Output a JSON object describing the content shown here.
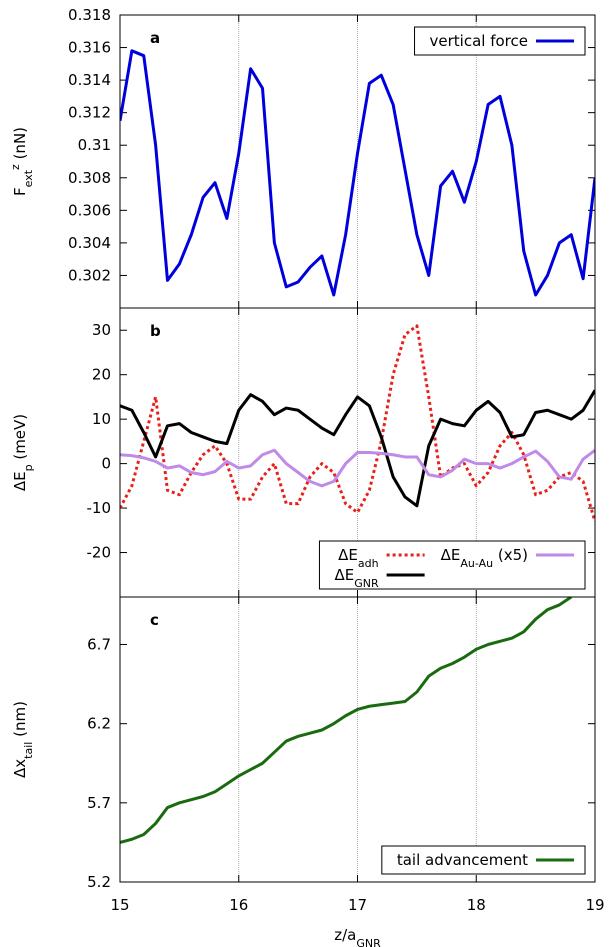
{
  "chart_data": [
    {
      "type": "line",
      "label": "a",
      "xlim": [
        15,
        19
      ],
      "xticks": [
        15,
        16,
        17,
        18,
        19
      ],
      "grid": true,
      "ylim": [
        0.3,
        0.318
      ],
      "yticks": [
        0.302,
        0.304,
        0.306,
        0.308,
        0.31,
        0.312,
        0.314,
        0.316,
        0.318
      ],
      "ylabel": [
        {
          "text": "F"
        },
        {
          "text": "ext",
          "shift": "sub"
        },
        {
          "text": "z",
          "shift": "super"
        },
        {
          "text": " (nN)"
        }
      ],
      "legend": "upper right",
      "x": [
        15,
        15.1,
        15.2,
        15.3,
        15.4,
        15.5,
        15.6,
        15.7,
        15.8,
        15.9,
        16,
        16.1,
        16.2,
        16.3,
        16.4,
        16.5,
        16.6,
        16.7,
        16.8,
        16.9,
        17,
        17.1,
        17.2,
        17.3,
        17.4,
        17.5,
        17.6,
        17.7,
        17.8,
        17.9,
        18,
        18.1,
        18.2,
        18.3,
        18.4,
        18.5,
        18.6,
        18.7,
        18.8,
        18.9,
        19
      ],
      "series": [
        {
          "name": [
            {
              "text": "vertical force"
            }
          ],
          "color": "#0000dd",
          "dash": "solid",
          "values": [
            0.3115,
            0.3158,
            0.3155,
            0.31,
            0.3017,
            0.3027,
            0.3045,
            0.3068,
            0.3077,
            0.3055,
            0.3095,
            0.3147,
            0.3135,
            0.304,
            0.3013,
            0.3016,
            0.3025,
            0.3032,
            0.3008,
            0.3045,
            0.3095,
            0.3138,
            0.3143,
            0.3125,
            0.3085,
            0.3045,
            0.302,
            0.3075,
            0.3084,
            0.3065,
            0.309,
            0.3125,
            0.313,
            0.31,
            0.3035,
            0.3008,
            0.302,
            0.304,
            0.3045,
            0.3018,
            0.308
          ]
        }
      ]
    },
    {
      "type": "line",
      "label": "b",
      "xlim": [
        15,
        19
      ],
      "xticks": [
        15,
        16,
        17,
        18,
        19
      ],
      "grid": true,
      "ylim": [
        -30,
        35
      ],
      "yticks": [
        -20,
        -10,
        0,
        10,
        20,
        30
      ],
      "ylabel": [
        {
          "text": "ΔE"
        },
        {
          "text": "p",
          "shift": "sub"
        },
        {
          "text": " (meV)"
        }
      ],
      "legend": "lower right",
      "x": [
        15,
        15.1,
        15.2,
        15.3,
        15.4,
        15.5,
        15.6,
        15.7,
        15.8,
        15.9,
        16,
        16.1,
        16.2,
        16.3,
        16.4,
        16.5,
        16.6,
        16.7,
        16.8,
        16.9,
        17,
        17.1,
        17.2,
        17.3,
        17.4,
        17.5,
        17.6,
        17.7,
        17.8,
        17.9,
        18,
        18.1,
        18.2,
        18.3,
        18.4,
        18.5,
        18.6,
        18.7,
        18.8,
        18.9,
        19
      ],
      "series": [
        {
          "name": [
            {
              "text": "ΔE"
            },
            {
              "text": "adh",
              "shift": "sub"
            }
          ],
          "color": "#e8201a",
          "dash": "dotted",
          "values": [
            -10,
            -5,
            5,
            15,
            -6,
            -7,
            -2,
            2,
            4,
            0,
            -8,
            -8,
            -3,
            0,
            -9,
            -9,
            -3,
            0,
            -2,
            -9,
            -11,
            -6,
            5,
            20,
            29,
            31,
            15,
            -3,
            -1,
            0,
            -5,
            -2,
            4,
            7,
            2,
            -7,
            -6,
            -3,
            -2,
            -4,
            -13
          ]
        },
        {
          "name": [
            {
              "text": "ΔE"
            },
            {
              "text": "GNR",
              "shift": "sub"
            }
          ],
          "color": "#000000",
          "dash": "solid",
          "values": [
            13,
            12,
            7,
            1.5,
            8.5,
            9,
            7,
            6,
            5,
            4.5,
            12,
            15.5,
            14,
            11,
            12.5,
            12,
            10,
            8,
            6.5,
            11,
            15,
            13,
            6,
            -3,
            -7.5,
            -9.5,
            4,
            10,
            9,
            8.5,
            12,
            14,
            11.5,
            6,
            6.5,
            11.5,
            12,
            11,
            10,
            12,
            16.5
          ]
        },
        {
          "name": [
            {
              "text": "ΔE"
            },
            {
              "text": "Au-Au",
              "shift": "sub"
            },
            {
              "text": " (x5)"
            }
          ],
          "color": "#c08ae8",
          "dash": "solid",
          "values": [
            2,
            1.8,
            1.3,
            0.5,
            -1,
            -0.5,
            -2,
            -2.5,
            -1.8,
            0.5,
            -1,
            -0.5,
            2,
            3,
            0,
            -2,
            -4,
            -5,
            -4,
            0,
            2.5,
            2.5,
            2.3,
            2,
            1.5,
            1.5,
            -2.5,
            -3,
            -1.5,
            1,
            0,
            0,
            -1,
            0,
            1.5,
            2.8,
            0.5,
            -3,
            -3.5,
            1,
            3
          ]
        }
      ]
    },
    {
      "type": "line",
      "label": "c",
      "xlim": [
        15,
        19
      ],
      "xticks": [
        15,
        16,
        17,
        18,
        19
      ],
      "grid": true,
      "xlabel": [
        {
          "text": "z/a"
        },
        {
          "text": "GNR",
          "shift": "sub"
        }
      ],
      "ylim": [
        5.2,
        7.0
      ],
      "yticks": [
        5.2,
        5.7,
        6.2,
        6.7
      ],
      "ylabel": [
        {
          "text": "Δx"
        },
        {
          "text": "tail",
          "shift": "sub"
        },
        {
          "text": " (nm)"
        }
      ],
      "legend": "lower right",
      "x": [
        15,
        15.1,
        15.2,
        15.3,
        15.4,
        15.5,
        15.6,
        15.7,
        15.8,
        15.9,
        16,
        16.1,
        16.2,
        16.3,
        16.4,
        16.5,
        16.6,
        16.7,
        16.8,
        16.9,
        17,
        17.1,
        17.2,
        17.3,
        17.4,
        17.5,
        17.6,
        17.7,
        17.8,
        17.9,
        18,
        18.1,
        18.2,
        18.3,
        18.4,
        18.5,
        18.6,
        18.7,
        18.8,
        18.9,
        19
      ],
      "series": [
        {
          "name": [
            {
              "text": "tail advancement"
            }
          ],
          "color": "#1a6b10",
          "dash": "solid",
          "values": [
            5.45,
            5.47,
            5.5,
            5.57,
            5.67,
            5.7,
            5.72,
            5.74,
            5.77,
            5.82,
            5.87,
            5.91,
            5.95,
            6.02,
            6.09,
            6.12,
            6.14,
            6.16,
            6.2,
            6.25,
            6.29,
            6.31,
            6.32,
            6.33,
            6.34,
            6.4,
            6.5,
            6.55,
            6.58,
            6.62,
            6.67,
            6.7,
            6.72,
            6.74,
            6.78,
            6.86,
            6.92,
            6.95,
            7.0,
            null,
            null
          ]
        }
      ]
    }
  ]
}
